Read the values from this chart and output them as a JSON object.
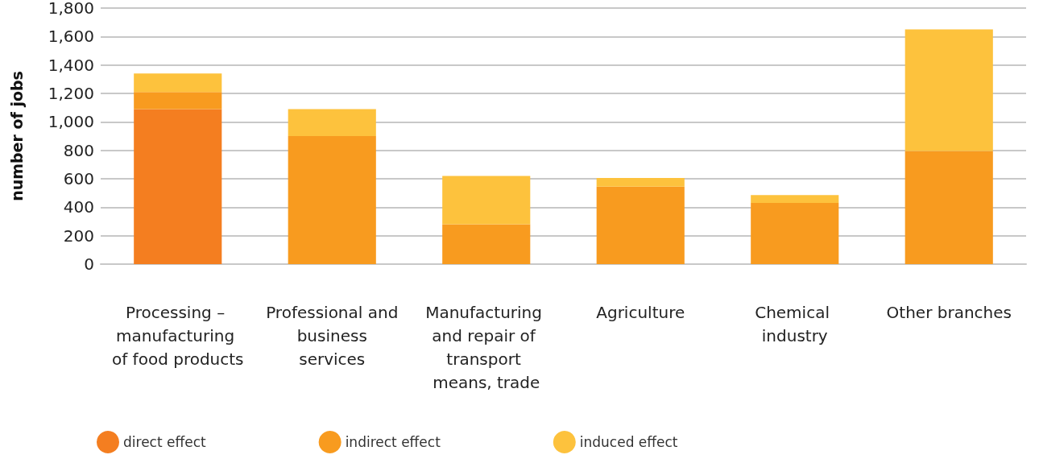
{
  "chart_data": {
    "type": "bar",
    "stacked": true,
    "ylabel": "number of jobs",
    "categories": [
      "Processing – manufacturing of food products",
      "Professional and business services",
      "Manufacturing and repair of transport means, trade",
      "Agriculture",
      "Chemical industry",
      "Other branches"
    ],
    "series": [
      {
        "name": "direct effect",
        "color": "#f47e20",
        "values": [
          1090,
          0,
          0,
          0,
          0,
          0
        ]
      },
      {
        "name": "indirect effect",
        "color": "#f89b1f",
        "values": [
          120,
          900,
          280,
          545,
          430,
          795
        ]
      },
      {
        "name": "induced effect",
        "color": "#fdc23d",
        "values": [
          130,
          190,
          340,
          60,
          55,
          855
        ]
      }
    ],
    "ylim": [
      0,
      1800
    ],
    "yticks": [
      0,
      200,
      400,
      600,
      800,
      {
        "value": 1000,
        "label": "1,000"
      },
      {
        "value": 1200,
        "label": "1,200"
      },
      {
        "value": 1400,
        "label": "1,400"
      },
      {
        "value": 1600,
        "label": "1,600"
      },
      {
        "value": 1800,
        "label": "1,800"
      }
    ],
    "grid": "y",
    "legend": "bottom"
  }
}
